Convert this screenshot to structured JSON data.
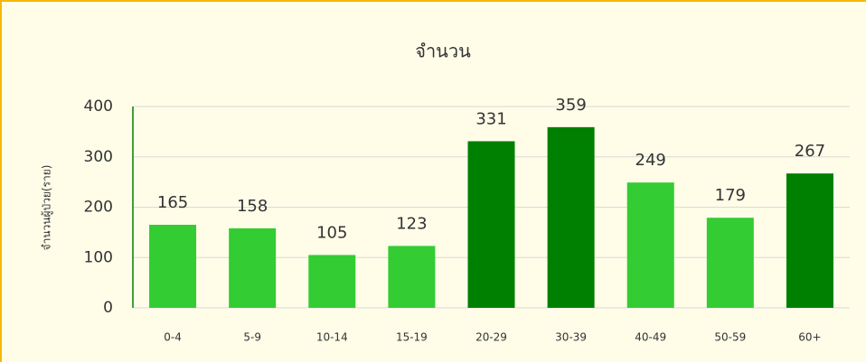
{
  "chart_data": {
    "type": "bar",
    "title": "จำนวน",
    "y_label": "จำนวนผู้ป่วย(ราย)",
    "categories": [
      "0-4",
      "5-9",
      "10-14",
      "15-19",
      "20-29",
      "30-39",
      "40-49",
      "50-59",
      "60+"
    ],
    "values": [
      165,
      158,
      105,
      123,
      331,
      359,
      249,
      179,
      267
    ],
    "colors": [
      "#33cc33",
      "#33cc33",
      "#33cc33",
      "#33cc33",
      "#008000",
      "#008000",
      "#33cc33",
      "#33cc33",
      "#008000"
    ],
    "ylim": [
      0,
      400
    ],
    "yticks": [
      0,
      100,
      200,
      300,
      400
    ],
    "grid": true
  }
}
